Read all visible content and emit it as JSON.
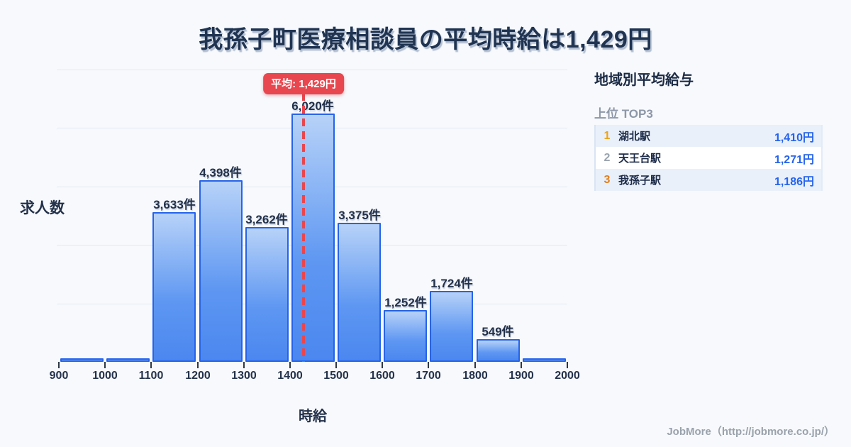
{
  "page": {
    "title": "我孫子町医療相談員の平均時給は1,429円"
  },
  "chart_data": {
    "type": "bar",
    "title": "我孫子町医療相談員の平均時給は1,429円",
    "xlabel": "時給",
    "ylabel": "求人数",
    "x_tick_labels": [
      "900",
      "1000",
      "1100",
      "1200",
      "1300",
      "1400",
      "1500",
      "1600",
      "1700",
      "1800",
      "1900",
      "2000"
    ],
    "bin_width": 100,
    "ylim": [
      0,
      6020
    ],
    "grid": "horizontal-light",
    "bars": [
      {
        "bin_start": 900,
        "bin_end": 1000,
        "count": null,
        "label": ""
      },
      {
        "bin_start": 1000,
        "bin_end": 1100,
        "count": null,
        "label": ""
      },
      {
        "bin_start": 1100,
        "bin_end": 1200,
        "count": 3633,
        "label": "3,633件"
      },
      {
        "bin_start": 1200,
        "bin_end": 1300,
        "count": 4398,
        "label": "4,398件"
      },
      {
        "bin_start": 1300,
        "bin_end": 1400,
        "count": 3262,
        "label": "3,262件"
      },
      {
        "bin_start": 1400,
        "bin_end": 1500,
        "count": 6020,
        "label": "6,020件"
      },
      {
        "bin_start": 1500,
        "bin_end": 1600,
        "count": 3375,
        "label": "3,375件"
      },
      {
        "bin_start": 1600,
        "bin_end": 1700,
        "count": 1252,
        "label": "1,252件"
      },
      {
        "bin_start": 1700,
        "bin_end": 1800,
        "count": 1724,
        "label": "1,724件"
      },
      {
        "bin_start": 1800,
        "bin_end": 1900,
        "count": 549,
        "label": "549件"
      },
      {
        "bin_start": 1900,
        "bin_end": 2000,
        "count": null,
        "label": ""
      }
    ],
    "average_line": {
      "value": 1429,
      "label": "平均: 1,429円",
      "color": "#e8474f",
      "style": "dashed"
    },
    "colors": {
      "bar_fill_top": "#b7d2f8",
      "bar_fill_bottom": "#4b87ef",
      "bar_border": "#2563eb",
      "gridline": "#e4e9f2",
      "text": "#22304a"
    }
  },
  "sidebar": {
    "title": "地域別平均給与",
    "subtitle": "上位 TOP3",
    "rows": [
      {
        "rank": "1",
        "name": "湖北駅",
        "value": "1,410円",
        "rank_color": "#eda415",
        "highlighted": true
      },
      {
        "rank": "2",
        "name": "天王台駅",
        "value": "1,271円",
        "rank_color": "#9aa3ae",
        "highlighted": false
      },
      {
        "rank": "3",
        "name": "我孫子駅",
        "value": "1,186円",
        "rank_color": "#e0801f",
        "highlighted": true
      }
    ],
    "value_color": "#2563eb"
  },
  "footer": {
    "credit": "JobMore（http://jobmore.co.jp/）"
  }
}
